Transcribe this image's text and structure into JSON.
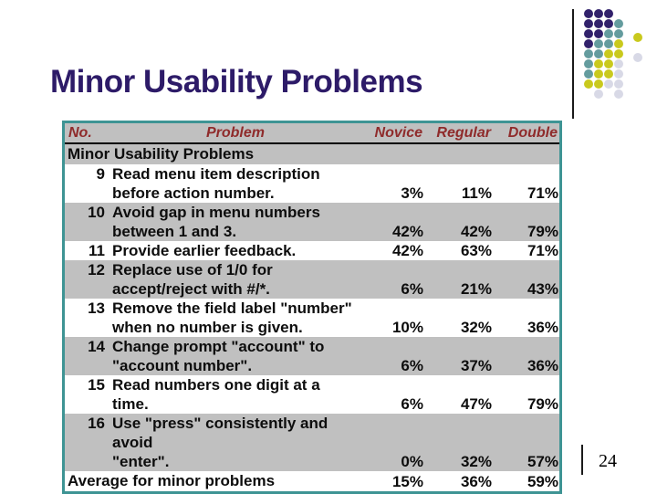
{
  "title": "Minor Usability Problems",
  "page_number": "24",
  "table": {
    "columns": [
      "No.",
      "Problem",
      "Novice",
      "Regular",
      "Double"
    ],
    "group_header": "Minor Usability Problems",
    "rows": [
      {
        "no": "9",
        "problem": "Read menu item description\nbefore action number.",
        "novice": "3%",
        "regular": "11%",
        "double": "71%"
      },
      {
        "no": "10",
        "problem": "Avoid gap in menu numbers\nbetween 1 and 3.",
        "novice": "42%",
        "regular": "42%",
        "double": "79%"
      },
      {
        "no": "11",
        "problem": "Provide earlier feedback.",
        "novice": "42%",
        "regular": "63%",
        "double": "71%"
      },
      {
        "no": "12",
        "problem": "Replace use of 1/0 for\naccept/reject with #/*.",
        "novice": "6%",
        "regular": "21%",
        "double": "43%"
      },
      {
        "no": "13",
        "problem": "Remove the field label \"number\"\nwhen no number is given.",
        "novice": "10%",
        "regular": "32%",
        "double": "36%"
      },
      {
        "no": "14",
        "problem": "Change prompt \"account\" to\n\"account number\".",
        "novice": "6%",
        "regular": "37%",
        "double": "36%"
      },
      {
        "no": "15",
        "problem": "Read numbers one digit at a time.",
        "novice": "6%",
        "regular": "47%",
        "double": "79%"
      },
      {
        "no": "16",
        "problem": "Use \"press\" consistently and avoid\n\"enter\".",
        "novice": "0%",
        "regular": "32%",
        "double": "57%"
      }
    ],
    "footer": {
      "label": "Average for minor problems",
      "novice": "15%",
      "regular": "36%",
      "double": "59%"
    }
  },
  "colors": {
    "title_text": "#2d1b68",
    "header_text": "#8f2b2b",
    "table_border": "#3e9494",
    "row_shade": "#c0c0c0",
    "dot_purple": "#31216b",
    "dot_teal": "#649c9e",
    "dot_yellow": "#c9c91d",
    "dot_gray": "#d8d9e6"
  },
  "dots": {
    "pattern": [
      "ppp",
      "pppt",
      "pptty",
      "ptty",
      "ttyyg",
      "tyyg",
      "tyyg",
      "yygg",
      ".g.g"
    ]
  }
}
